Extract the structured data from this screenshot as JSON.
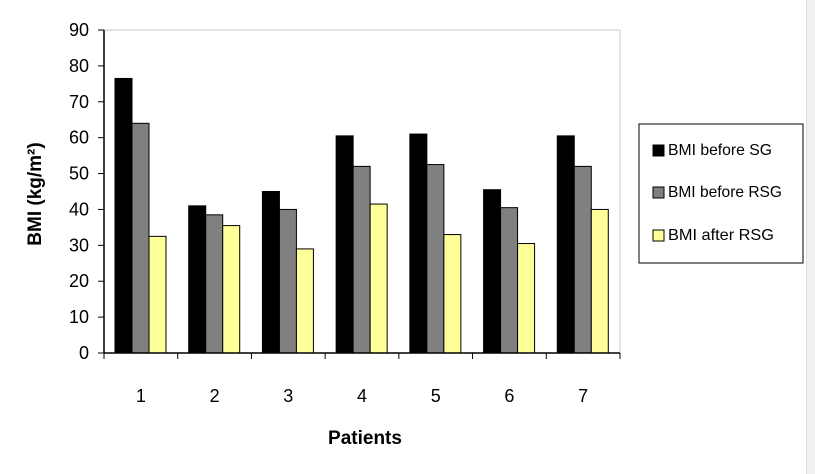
{
  "chart_data": {
    "type": "bar",
    "title": "",
    "xlabel": "Patients",
    "ylabel": "BMI  (kg/m²)",
    "categories": [
      "1",
      "2",
      "3",
      "4",
      "5",
      "6",
      "7"
    ],
    "ylim": [
      0,
      90
    ],
    "yticks": [
      "0",
      "10",
      "20",
      "30",
      "40",
      "50",
      "60",
      "70",
      "80",
      "90"
    ],
    "grid": false,
    "legend_position": "right",
    "series": [
      {
        "name": "BMI before SG",
        "color": "#000000",
        "values": [
          76.5,
          41,
          45,
          60.5,
          61,
          45.5,
          60.5
        ]
      },
      {
        "name": "BMI before RSG",
        "color": "#808080",
        "values": [
          64,
          38.5,
          40,
          52,
          52.5,
          40.5,
          52
        ]
      },
      {
        "name": "BMI after RSG",
        "color": "#ffff99",
        "values": [
          32.5,
          35.5,
          29,
          41.5,
          33,
          30.5,
          40
        ]
      }
    ]
  }
}
